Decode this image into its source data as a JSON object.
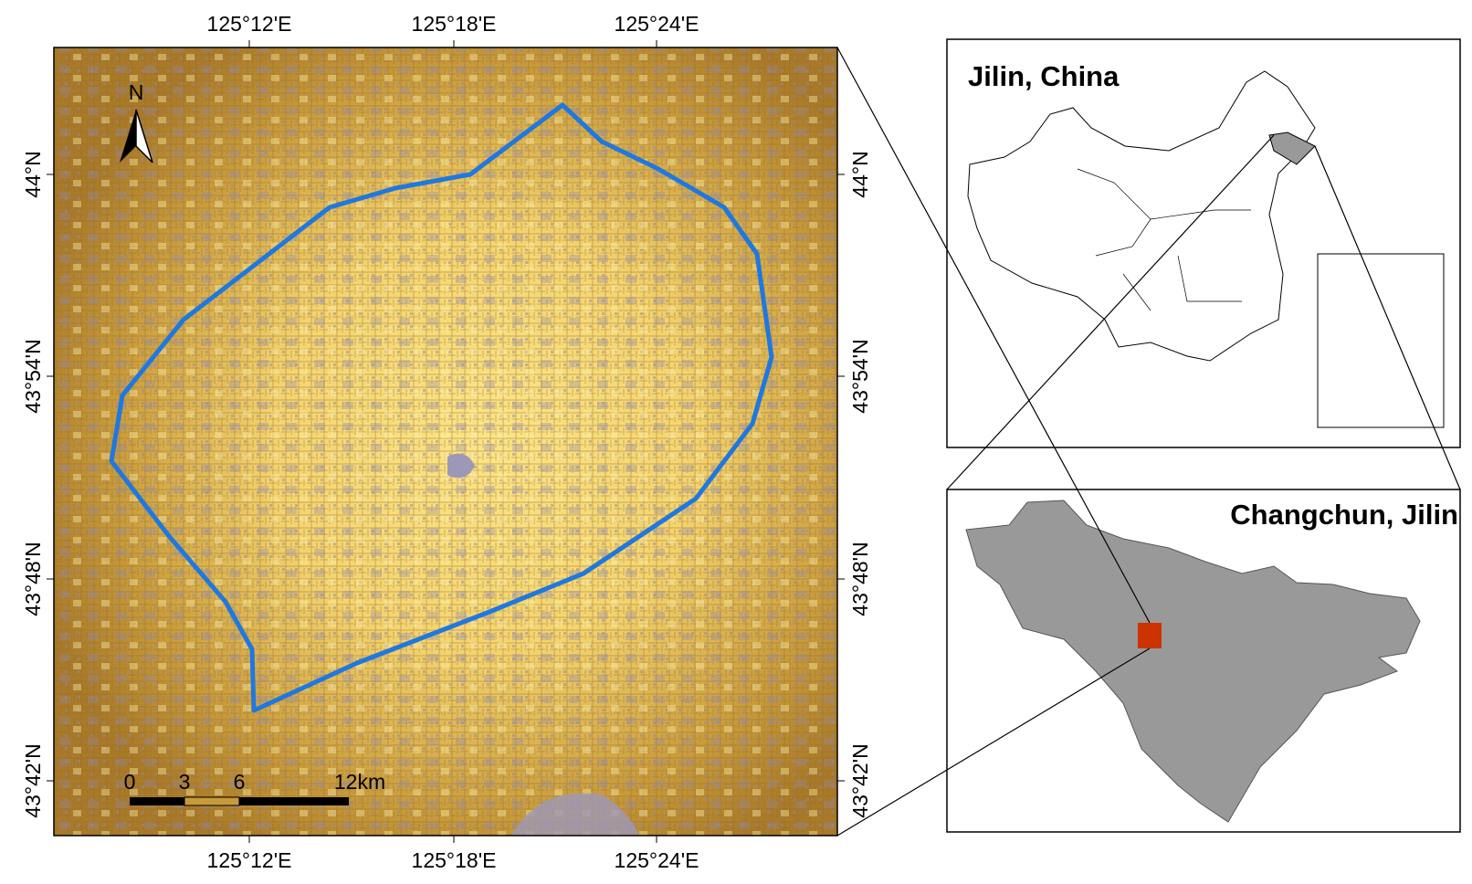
{
  "map": {
    "north_label": "N",
    "lon_labels_top": [
      "125°12'E",
      "125°18'E",
      "125°24'E"
    ],
    "lon_labels_bottom": [
      "125°12'E",
      "125°18'E",
      "125°24'E"
    ],
    "lat_labels_left": [
      "44°N",
      "43°54'N",
      "43°48'N",
      "43°42'N"
    ],
    "lat_labels_right": [
      "44°N",
      "43°54'N",
      "43°48'N",
      "43°42'N"
    ],
    "scale_bar": [
      "0",
      "3",
      "6",
      "12km"
    ]
  },
  "inset_china": {
    "title": "Jilin, China"
  },
  "inset_jilin": {
    "title": "Changchun, Jilin"
  }
}
